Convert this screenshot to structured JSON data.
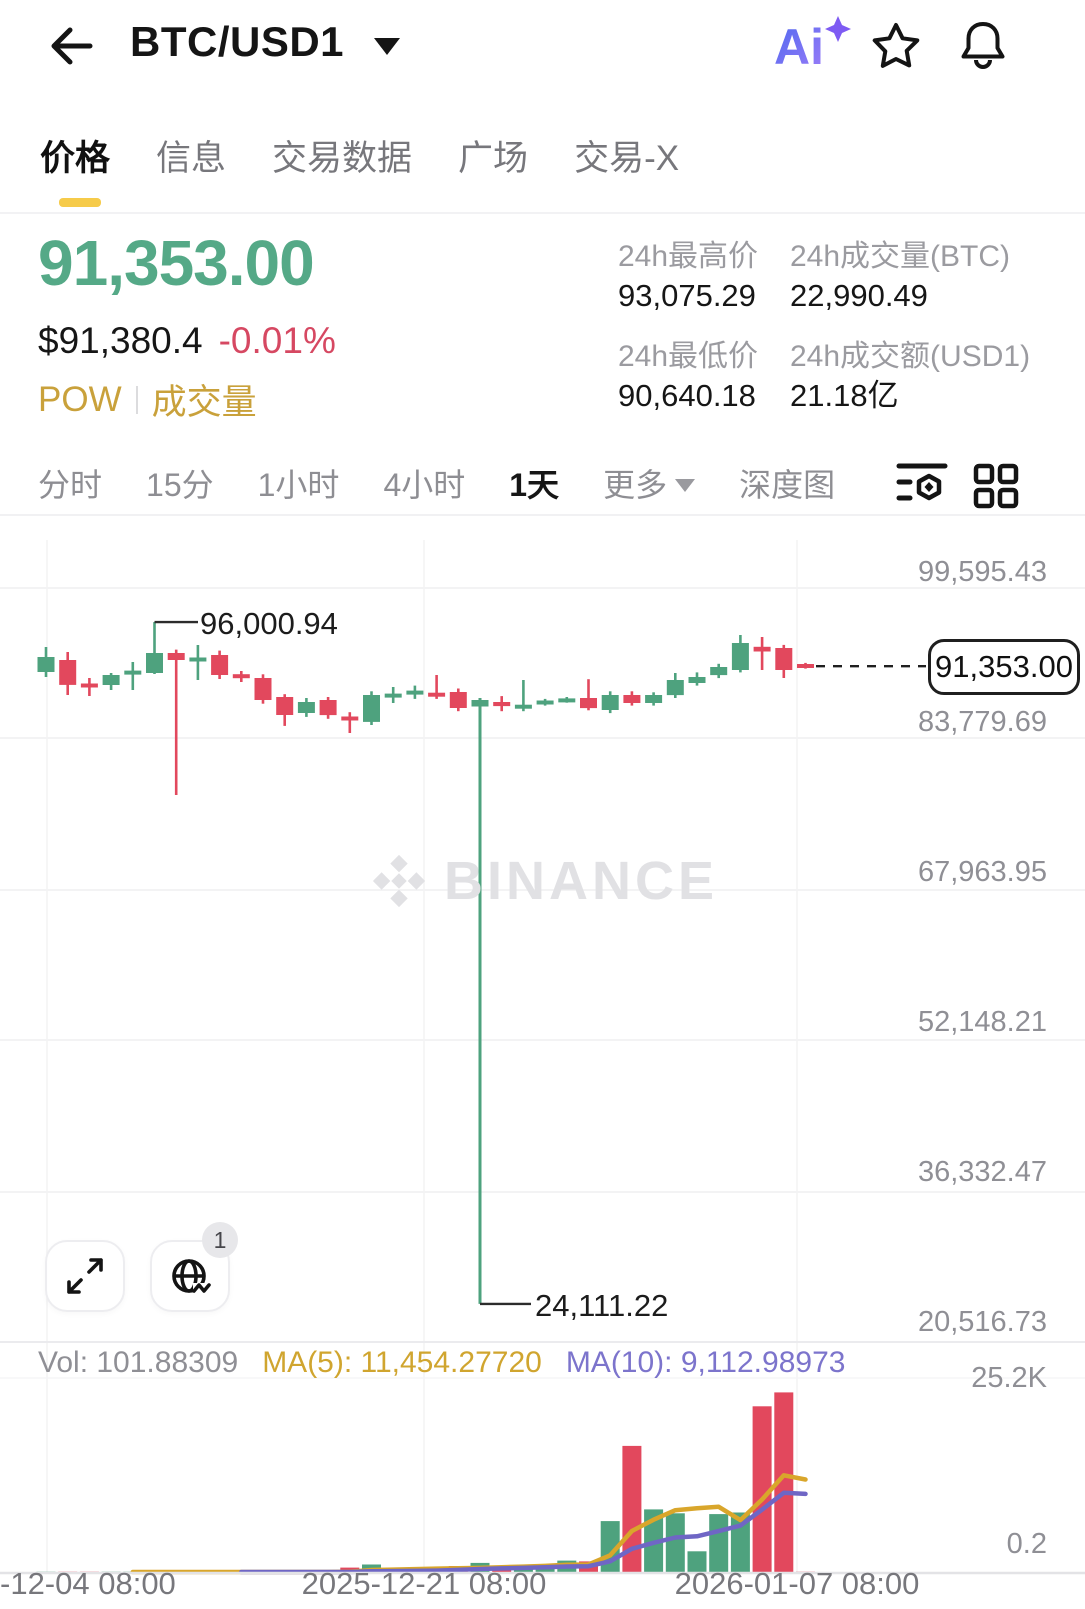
{
  "header": {
    "title": "BTC/USD1",
    "ai_label": "Ai"
  },
  "tabs": [
    {
      "label": "价格",
      "active": true
    },
    {
      "label": "信息",
      "active": false
    },
    {
      "label": "交易数据",
      "active": false
    },
    {
      "label": "广场",
      "active": false
    },
    {
      "label": "交易-X",
      "active": false
    }
  ],
  "price_panel": {
    "last_price": "91,353.00",
    "fiat_price": "$91,380.4",
    "change_pct": "-0.01%",
    "tag_pow": "POW",
    "tag_volume": "成交量"
  },
  "stats": [
    {
      "label": "24h最高价",
      "value": "93,075.29"
    },
    {
      "label": "24h成交量(BTC)",
      "value": "22,990.49"
    },
    {
      "label": "24h最低价",
      "value": "90,640.18"
    },
    {
      "label": "24h成交额(USD1)",
      "value": "21.18亿"
    }
  ],
  "toolbar": {
    "timeframes": [
      {
        "label": "分时",
        "active": false,
        "dropdown": false
      },
      {
        "label": "15分",
        "active": false,
        "dropdown": false
      },
      {
        "label": "1小时",
        "active": false,
        "dropdown": false
      },
      {
        "label": "4小时",
        "active": false,
        "dropdown": false
      },
      {
        "label": "1天",
        "active": true,
        "dropdown": false
      },
      {
        "label": "更多",
        "active": false,
        "dropdown": true
      },
      {
        "label": "深度图",
        "active": false,
        "dropdown": false
      }
    ]
  },
  "chart": {
    "watermark": "BINANCE",
    "y_axis_labels": [
      "99,595.43",
      "83,779.69",
      "67,963.95",
      "52,148.21",
      "36,332.47",
      "20,516.73"
    ],
    "current_price_tag": "91,353.00",
    "annotation_high": "96,000.94",
    "annotation_low": "24,111.22",
    "volume_axis_labels": [
      "25.2K",
      "0.2"
    ],
    "x_axis_labels": [
      "-12-04 08:00",
      "2025-12-21 08:00",
      "2026-01-07 08:00"
    ],
    "indicator_row": {
      "vol": "Vol: 101.88309",
      "ma5": "MA(5): 11,454.27720",
      "ma10": "MA(10): 9,112.98973"
    },
    "floating_badge": "1",
    "colors": {
      "up": "#4EA27E",
      "down": "#E2485D",
      "ma5": "#D9A62B",
      "ma10": "#6F66C5",
      "accent_yellow": "#F6CB4A",
      "price_green": "#55A987",
      "change_red": "#D64862",
      "gold_text": "#C9A13B"
    }
  },
  "chart_data": {
    "type": "candlestick",
    "interval": "1天",
    "price_axis_gridline_values": [
      99595.43,
      83779.69,
      67963.95,
      52148.21,
      36332.47,
      20516.73
    ],
    "high_annotation_value": 96000.94,
    "low_annotation_value": 24111.22,
    "last_close": 91353.0,
    "volume_axis_top_value_k": 25.2,
    "candle_fields": [
      "open",
      "high",
      "low",
      "close",
      "volume"
    ],
    "candles": [
      [
        90740,
        93370,
        90210,
        92320,
        30
      ],
      [
        92000,
        92850,
        88310,
        89370,
        45
      ],
      [
        89470,
        90110,
        88210,
        89160,
        25
      ],
      [
        89370,
        90630,
        88840,
        90420,
        40
      ],
      [
        90600,
        91790,
        88840,
        90740,
        35
      ],
      [
        90630,
        96000.94,
        90530,
        92740,
        90
      ],
      [
        92740,
        93100,
        77770,
        92000,
        110
      ],
      [
        91900,
        93590,
        89900,
        92220,
        60
      ],
      [
        92530,
        93000,
        90000,
        90420,
        45
      ],
      [
        90350,
        90840,
        89680,
        90240,
        30
      ],
      [
        90110,
        90500,
        87400,
        87790,
        40
      ],
      [
        88100,
        88400,
        85050,
        86200,
        55
      ],
      [
        86420,
        88000,
        86000,
        87580,
        35
      ],
      [
        87790,
        88100,
        85800,
        86200,
        40
      ],
      [
        85990,
        86500,
        84310,
        85680,
        700
      ],
      [
        85470,
        88700,
        85150,
        88310,
        1100
      ],
      [
        88200,
        89160,
        87470,
        88310,
        350
      ],
      [
        88500,
        89300,
        87900,
        88630,
        300
      ],
      [
        88500,
        90420,
        87900,
        88200,
        420
      ],
      [
        88630,
        89000,
        86600,
        86940,
        900
      ],
      [
        87100,
        88000,
        24111.22,
        87790,
        1300
      ],
      [
        87580,
        88200,
        86600,
        87150,
        800
      ],
      [
        86900,
        89900,
        86600,
        87260,
        700
      ],
      [
        87470,
        87900,
        87200,
        87580,
        900
      ],
      [
        87700,
        88100,
        87500,
        87790,
        1600
      ],
      [
        88000,
        89980,
        86700,
        86940,
        1500
      ],
      [
        86730,
        88700,
        86400,
        88310,
        6700
      ],
      [
        88310,
        88700,
        87200,
        87470,
        16400
      ],
      [
        87470,
        88600,
        87200,
        88310,
        8200
      ],
      [
        88310,
        90630,
        88000,
        89900,
        7700
      ],
      [
        89580,
        90700,
        89300,
        90210,
        2800
      ],
      [
        90420,
        91600,
        90100,
        91270,
        7600
      ],
      [
        90950,
        94640,
        90700,
        93800,
        7800
      ],
      [
        93400,
        94430,
        90950,
        92900,
        21500
      ],
      [
        93270,
        93600,
        90110,
        90950,
        23300
      ],
      [
        91380,
        91700,
        91100,
        91353,
        101.88
      ]
    ]
  }
}
